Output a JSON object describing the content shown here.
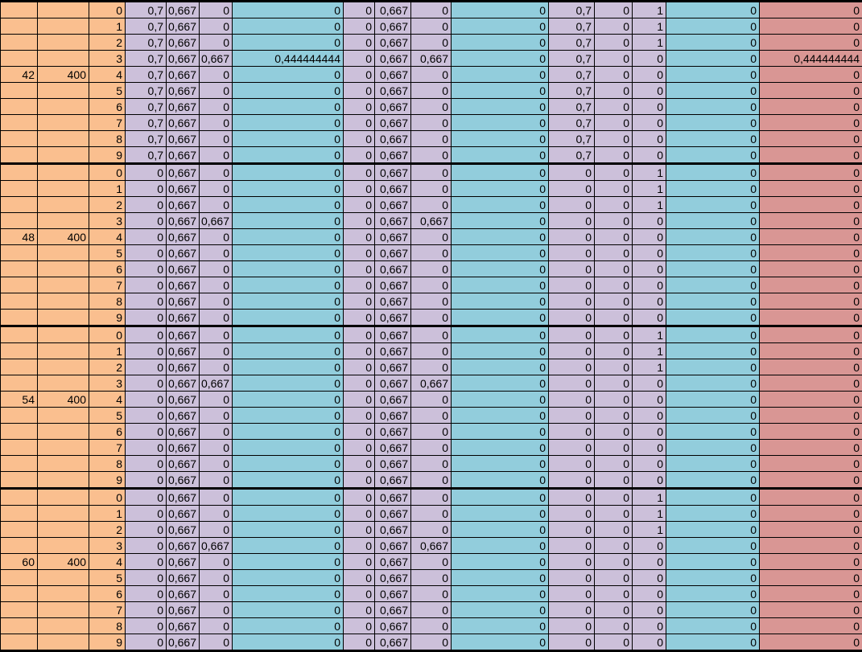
{
  "sheet": {
    "title": "spreadsheet-grid"
  },
  "colors": {
    "orange": "#fabf8f",
    "lavender": "#ccc0da",
    "cyan": "#92cddc",
    "red": "#d99694",
    "grid_line": "#000000",
    "text": "#000000"
  },
  "columns": {
    "widths": [
      46,
      64,
      45,
      51,
      41,
      41,
      138,
      39,
      45,
      50,
      121,
      57,
      47,
      42,
      116,
      128
    ],
    "color_keys": [
      "orange",
      "orange",
      "orange",
      "lavender",
      "lavender",
      "lavender",
      "cyan",
      "lavender",
      "lavender",
      "lavender",
      "cyan",
      "lavender",
      "lavender",
      "lavender",
      "cyan",
      "red"
    ],
    "thick_left_border_col_index": 15
  },
  "groups": [
    {
      "group_value": "42",
      "group_size": "400",
      "label_row_index": 4,
      "rows": [
        {
          "idx": "0",
          "cells": [
            "0,7",
            "0,667",
            "0",
            "0",
            "0",
            "0,667",
            "0",
            "0",
            "0,7",
            "0",
            "1",
            "0",
            "0"
          ]
        },
        {
          "idx": "1",
          "cells": [
            "0,7",
            "0,667",
            "0",
            "0",
            "0",
            "0,667",
            "0",
            "0",
            "0,7",
            "0",
            "1",
            "0",
            "0"
          ]
        },
        {
          "idx": "2",
          "cells": [
            "0,7",
            "0,667",
            "0",
            "0",
            "0",
            "0,667",
            "0",
            "0",
            "0,7",
            "0",
            "1",
            "0",
            "0"
          ]
        },
        {
          "idx": "3",
          "cells": [
            "0,7",
            "0,667",
            "0,667",
            "0,444444444",
            "0",
            "0,667",
            "0,667",
            "0",
            "0,7",
            "0",
            "0",
            "0",
            "0,444444444"
          ]
        },
        {
          "idx": "4",
          "cells": [
            "0,7",
            "0,667",
            "0",
            "0",
            "0",
            "0,667",
            "0",
            "0",
            "0,7",
            "0",
            "0",
            "0",
            "0"
          ]
        },
        {
          "idx": "5",
          "cells": [
            "0,7",
            "0,667",
            "0",
            "0",
            "0",
            "0,667",
            "0",
            "0",
            "0,7",
            "0",
            "0",
            "0",
            "0"
          ]
        },
        {
          "idx": "6",
          "cells": [
            "0,7",
            "0,667",
            "0",
            "0",
            "0",
            "0,667",
            "0",
            "0",
            "0,7",
            "0",
            "0",
            "0",
            "0"
          ]
        },
        {
          "idx": "7",
          "cells": [
            "0,7",
            "0,667",
            "0",
            "0",
            "0",
            "0,667",
            "0",
            "0",
            "0,7",
            "0",
            "0",
            "0",
            "0"
          ]
        },
        {
          "idx": "8",
          "cells": [
            "0,7",
            "0,667",
            "0",
            "0",
            "0",
            "0,667",
            "0",
            "0",
            "0,7",
            "0",
            "0",
            "0",
            "0"
          ]
        },
        {
          "idx": "9",
          "cells": [
            "0,7",
            "0,667",
            "0",
            "0",
            "0",
            "0,667",
            "0",
            "0",
            "0,7",
            "0",
            "0",
            "0",
            "0"
          ]
        }
      ]
    },
    {
      "group_value": "48",
      "group_size": "400",
      "label_row_index": 4,
      "rows": [
        {
          "idx": "0",
          "cells": [
            "0",
            "0,667",
            "0",
            "0",
            "0",
            "0,667",
            "0",
            "0",
            "0",
            "0",
            "1",
            "0",
            "0"
          ]
        },
        {
          "idx": "1",
          "cells": [
            "0",
            "0,667",
            "0",
            "0",
            "0",
            "0,667",
            "0",
            "0",
            "0",
            "0",
            "1",
            "0",
            "0"
          ]
        },
        {
          "idx": "2",
          "cells": [
            "0",
            "0,667",
            "0",
            "0",
            "0",
            "0,667",
            "0",
            "0",
            "0",
            "0",
            "1",
            "0",
            "0"
          ]
        },
        {
          "idx": "3",
          "cells": [
            "0",
            "0,667",
            "0,667",
            "0",
            "0",
            "0,667",
            "0,667",
            "0",
            "0",
            "0",
            "0",
            "0",
            "0"
          ]
        },
        {
          "idx": "4",
          "cells": [
            "0",
            "0,667",
            "0",
            "0",
            "0",
            "0,667",
            "0",
            "0",
            "0",
            "0",
            "0",
            "0",
            "0"
          ]
        },
        {
          "idx": "5",
          "cells": [
            "0",
            "0,667",
            "0",
            "0",
            "0",
            "0,667",
            "0",
            "0",
            "0",
            "0",
            "0",
            "0",
            "0"
          ]
        },
        {
          "idx": "6",
          "cells": [
            "0",
            "0,667",
            "0",
            "0",
            "0",
            "0,667",
            "0",
            "0",
            "0",
            "0",
            "0",
            "0",
            "0"
          ]
        },
        {
          "idx": "7",
          "cells": [
            "0",
            "0,667",
            "0",
            "0",
            "0",
            "0,667",
            "0",
            "0",
            "0",
            "0",
            "0",
            "0",
            "0"
          ]
        },
        {
          "idx": "8",
          "cells": [
            "0",
            "0,667",
            "0",
            "0",
            "0",
            "0,667",
            "0",
            "0",
            "0",
            "0",
            "0",
            "0",
            "0"
          ]
        },
        {
          "idx": "9",
          "cells": [
            "0",
            "0,667",
            "0",
            "0",
            "0",
            "0,667",
            "0",
            "0",
            "0",
            "0",
            "0",
            "0",
            "0"
          ]
        }
      ]
    },
    {
      "group_value": "54",
      "group_size": "400",
      "label_row_index": 4,
      "rows": [
        {
          "idx": "0",
          "cells": [
            "0",
            "0,667",
            "0",
            "0",
            "0",
            "0,667",
            "0",
            "0",
            "0",
            "0",
            "1",
            "0",
            "0"
          ]
        },
        {
          "idx": "1",
          "cells": [
            "0",
            "0,667",
            "0",
            "0",
            "0",
            "0,667",
            "0",
            "0",
            "0",
            "0",
            "1",
            "0",
            "0"
          ]
        },
        {
          "idx": "2",
          "cells": [
            "0",
            "0,667",
            "0",
            "0",
            "0",
            "0,667",
            "0",
            "0",
            "0",
            "0",
            "1",
            "0",
            "0"
          ]
        },
        {
          "idx": "3",
          "cells": [
            "0",
            "0,667",
            "0,667",
            "0",
            "0",
            "0,667",
            "0,667",
            "0",
            "0",
            "0",
            "0",
            "0",
            "0"
          ]
        },
        {
          "idx": "4",
          "cells": [
            "0",
            "0,667",
            "0",
            "0",
            "0",
            "0,667",
            "0",
            "0",
            "0",
            "0",
            "0",
            "0",
            "0"
          ]
        },
        {
          "idx": "5",
          "cells": [
            "0",
            "0,667",
            "0",
            "0",
            "0",
            "0,667",
            "0",
            "0",
            "0",
            "0",
            "0",
            "0",
            "0"
          ]
        },
        {
          "idx": "6",
          "cells": [
            "0",
            "0,667",
            "0",
            "0",
            "0",
            "0,667",
            "0",
            "0",
            "0",
            "0",
            "0",
            "0",
            "0"
          ]
        },
        {
          "idx": "7",
          "cells": [
            "0",
            "0,667",
            "0",
            "0",
            "0",
            "0,667",
            "0",
            "0",
            "0",
            "0",
            "0",
            "0",
            "0"
          ]
        },
        {
          "idx": "8",
          "cells": [
            "0",
            "0,667",
            "0",
            "0",
            "0",
            "0,667",
            "0",
            "0",
            "0",
            "0",
            "0",
            "0",
            "0"
          ]
        },
        {
          "idx": "9",
          "cells": [
            "0",
            "0,667",
            "0",
            "0",
            "0",
            "0,667",
            "0",
            "0",
            "0",
            "0",
            "0",
            "0",
            "0"
          ]
        }
      ]
    },
    {
      "group_value": "60",
      "group_size": "400",
      "label_row_index": 4,
      "rows": [
        {
          "idx": "0",
          "cells": [
            "0",
            "0,667",
            "0",
            "0",
            "0",
            "0,667",
            "0",
            "0",
            "0",
            "0",
            "1",
            "0",
            "0"
          ]
        },
        {
          "idx": "1",
          "cells": [
            "0",
            "0,667",
            "0",
            "0",
            "0",
            "0,667",
            "0",
            "0",
            "0",
            "0",
            "1",
            "0",
            "0"
          ]
        },
        {
          "idx": "2",
          "cells": [
            "0",
            "0,667",
            "0",
            "0",
            "0",
            "0,667",
            "0",
            "0",
            "0",
            "0",
            "1",
            "0",
            "0"
          ]
        },
        {
          "idx": "3",
          "cells": [
            "0",
            "0,667",
            "0,667",
            "0",
            "0",
            "0,667",
            "0,667",
            "0",
            "0",
            "0",
            "0",
            "0",
            "0"
          ]
        },
        {
          "idx": "4",
          "cells": [
            "0",
            "0,667",
            "0",
            "0",
            "0",
            "0,667",
            "0",
            "0",
            "0",
            "0",
            "0",
            "0",
            "0"
          ]
        },
        {
          "idx": "5",
          "cells": [
            "0",
            "0,667",
            "0",
            "0",
            "0",
            "0,667",
            "0",
            "0",
            "0",
            "0",
            "0",
            "0",
            "0"
          ]
        },
        {
          "idx": "6",
          "cells": [
            "0",
            "0,667",
            "0",
            "0",
            "0",
            "0,667",
            "0",
            "0",
            "0",
            "0",
            "0",
            "0",
            "0"
          ]
        },
        {
          "idx": "7",
          "cells": [
            "0",
            "0,667",
            "0",
            "0",
            "0",
            "0,667",
            "0",
            "0",
            "0",
            "0",
            "0",
            "0",
            "0"
          ]
        },
        {
          "idx": "8",
          "cells": [
            "0",
            "0,667",
            "0",
            "0",
            "0",
            "0,667",
            "0",
            "0",
            "0",
            "0",
            "0",
            "0",
            "0"
          ]
        },
        {
          "idx": "9",
          "cells": [
            "0",
            "0,667",
            "0",
            "0",
            "0",
            "0,667",
            "0",
            "0",
            "0",
            "0",
            "0",
            "0",
            "0"
          ]
        }
      ]
    }
  ]
}
